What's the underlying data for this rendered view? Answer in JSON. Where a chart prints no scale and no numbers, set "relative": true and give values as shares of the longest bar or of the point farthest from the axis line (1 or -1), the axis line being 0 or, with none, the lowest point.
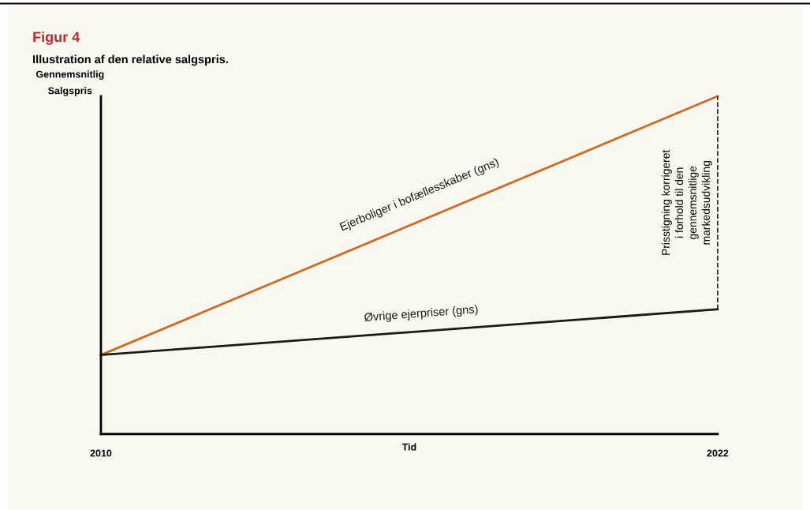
{
  "chart_data": {
    "type": "line",
    "title": "Figur 4",
    "subtitle": "Illustration af den relative salgspris.",
    "xlabel": "Tid",
    "ylabel": "Gennemsnitlig\nSalgspris",
    "relative": true,
    "x": [
      2010,
      2022
    ],
    "xlim": [
      2010,
      2022
    ],
    "xticks": [
      2010,
      2022
    ],
    "series": [
      {
        "name": "Ejerboliger i bofællesskaber (gns)",
        "color": "#d2691e",
        "values": [
          0.234,
          1
        ]
      },
      {
        "name": "Øvrige ejerpriser (gns)",
        "color": "#1a1a1a",
        "values": [
          0.234,
          0.369
        ]
      }
    ],
    "ref_lines": [
      {
        "axis": "x",
        "value": 2022,
        "label": "Prisstigning korrigeret\ni forhold til den\ngennemsnitlige\nmarkedsudvikling",
        "color": "#1a1a1a",
        "line_style": "dashed"
      }
    ],
    "marker": "none",
    "line_style": "solid"
  }
}
